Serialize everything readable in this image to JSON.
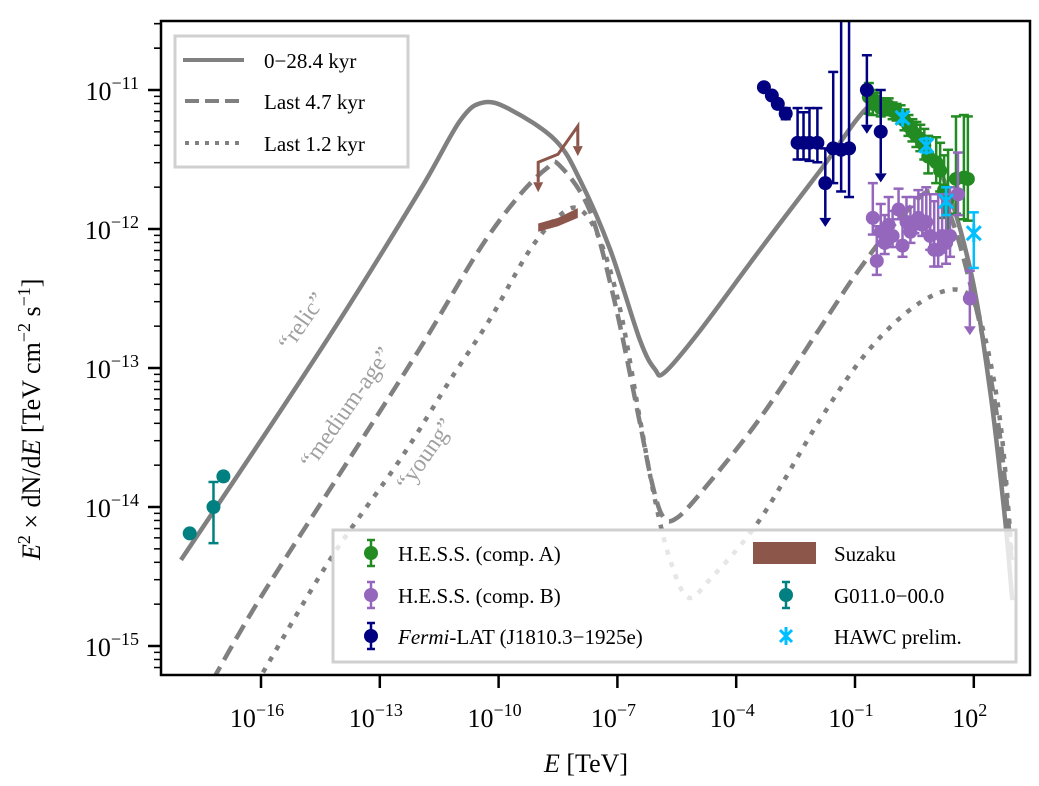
{
  "chart_data": {
    "type": "line",
    "title": "",
    "xlabel": "E [TeV]",
    "xlabel_var": "E",
    "xlabel_unit": "[TeV]",
    "ylabel": "E^2 × dN/dE [TeV cm^-2 s^-1]",
    "xscale": "log",
    "yscale": "log",
    "xlim_log10": [
      -18.5,
      3.6
    ],
    "ylim_log10": [
      -15.2,
      -10.5
    ],
    "x_ticks": [
      {
        "exp": "-16",
        "log10": -16
      },
      {
        "exp": "-13",
        "log10": -13
      },
      {
        "exp": "-10",
        "log10": -10
      },
      {
        "exp": "-7",
        "log10": -7
      },
      {
        "exp": "-4",
        "log10": -4
      },
      {
        "exp": "-1",
        "log10": -1
      },
      {
        "exp": "2",
        "log10": 2
      }
    ],
    "y_ticks": [
      {
        "exp": "-11",
        "log10": -11
      },
      {
        "exp": "-12",
        "log10": -12
      },
      {
        "exp": "-13",
        "log10": -13
      },
      {
        "exp": "-14",
        "log10": -14
      },
      {
        "exp": "-15",
        "log10": -15
      }
    ],
    "grid": false,
    "model_series": [
      {
        "name": "0−28.4 kyr",
        "style": "solid",
        "color": "#808080",
        "points_log10": [
          [
            -18.02,
            -14.38
          ],
          [
            -16.0,
            -13.52
          ],
          [
            -14.0,
            -12.65
          ],
          [
            -11.98,
            -11.72
          ],
          [
            -10.97,
            -11.22
          ],
          [
            -10.39,
            -11.09
          ],
          [
            -9.71,
            -11.14
          ],
          [
            -8.57,
            -11.36
          ],
          [
            -7.94,
            -11.65
          ],
          [
            -7.18,
            -12.15
          ],
          [
            -6.43,
            -12.8
          ],
          [
            -6.05,
            -13.01
          ],
          [
            -5.8,
            -13.03
          ],
          [
            -4.91,
            -12.73
          ],
          [
            -3.4,
            -12.15
          ],
          [
            -1.88,
            -11.58
          ],
          [
            -0.62,
            -11.11
          ],
          [
            0.14,
            -11.14
          ],
          [
            1.15,
            -11.58
          ],
          [
            1.91,
            -12.29
          ],
          [
            2.41,
            -13.16
          ],
          [
            2.79,
            -14.09
          ],
          [
            2.97,
            -14.67
          ]
        ]
      },
      {
        "name": "Last 4.7 kyr",
        "style": "dashed",
        "color": "#808080",
        "points_log10": [
          [
            -17.23,
            -15.25
          ],
          [
            -16.05,
            -14.67
          ],
          [
            -14.03,
            -13.77
          ],
          [
            -12.01,
            -12.87
          ],
          [
            -10.49,
            -12.15
          ],
          [
            -9.48,
            -11.76
          ],
          [
            -8.77,
            -11.56
          ],
          [
            -8.47,
            -11.54
          ],
          [
            -7.71,
            -11.86
          ],
          [
            -7.08,
            -12.51
          ],
          [
            -6.45,
            -13.37
          ],
          [
            -6.14,
            -13.81
          ],
          [
            -5.87,
            -14.06
          ],
          [
            -5.56,
            -14.09
          ],
          [
            -4.93,
            -13.91
          ],
          [
            -3.42,
            -13.37
          ],
          [
            -1.9,
            -12.72
          ],
          [
            -0.89,
            -12.29
          ],
          [
            0.12,
            -11.93
          ],
          [
            1.13,
            -11.75
          ],
          [
            2.01,
            -12.51
          ],
          [
            2.64,
            -13.45
          ],
          [
            2.95,
            -14.38
          ]
        ]
      },
      {
        "name": "Last 1.2 kyr",
        "style": "dotted",
        "color": "#808080",
        "points_log10": [
          [
            -15.95,
            -15.19
          ],
          [
            -14.26,
            -14.38
          ],
          [
            -12.49,
            -13.66
          ],
          [
            -11.23,
            -13.09
          ],
          [
            -10.22,
            -12.65
          ],
          [
            -9.21,
            -12.15
          ],
          [
            -8.45,
            -11.9
          ],
          [
            -7.94,
            -11.86
          ],
          [
            -7.44,
            -12.08
          ],
          [
            -6.93,
            -12.58
          ],
          [
            -6.43,
            -13.37
          ],
          [
            -6.05,
            -13.95
          ],
          [
            -5.67,
            -14.38
          ],
          [
            -5.22,
            -14.65
          ],
          [
            -4.66,
            -14.52
          ],
          [
            -3.4,
            -14.09
          ],
          [
            -1.88,
            -13.37
          ],
          [
            -0.62,
            -12.86
          ],
          [
            0.64,
            -12.53
          ],
          [
            1.66,
            -12.44
          ],
          [
            2.16,
            -12.65
          ],
          [
            2.66,
            -13.37
          ],
          [
            2.97,
            -14.38
          ]
        ]
      }
    ],
    "data_series": [
      {
        "name": "H.E.S.S. (comp. A)",
        "color": "#228b22",
        "marker": "circle",
        "points_log10": [
          [
            -0.65,
            -11.05,
            0.12,
            0.1
          ],
          [
            -0.55,
            -11.1,
            0.08,
            0.1
          ],
          [
            -0.45,
            -11.08,
            0.06,
            0.06
          ],
          [
            -0.35,
            -11.13,
            0.06,
            0.06
          ],
          [
            -0.25,
            -11.12,
            0.06,
            0.06
          ],
          [
            -0.15,
            -11.12,
            0.06,
            0.06
          ],
          [
            -0.05,
            -11.15,
            0.06,
            0.06
          ],
          [
            0.05,
            -11.16,
            0.06,
            0.06
          ],
          [
            0.15,
            -11.18,
            0.06,
            0.07
          ],
          [
            0.25,
            -11.22,
            0.07,
            0.08
          ],
          [
            0.35,
            -11.26,
            0.07,
            0.08
          ],
          [
            0.45,
            -11.3,
            0.07,
            0.09
          ],
          [
            0.55,
            -11.33,
            0.08,
            0.1
          ],
          [
            0.65,
            -11.35,
            0.09,
            0.1
          ],
          [
            0.75,
            -11.4,
            0.1,
            0.12
          ],
          [
            0.85,
            -11.48,
            0.12,
            0.15
          ],
          [
            1.05,
            -11.52,
            0.15,
            0.18
          ],
          [
            1.15,
            -11.58,
            0.15,
            0.2
          ],
          [
            1.25,
            -11.72,
            0.2,
            0.25
          ],
          [
            1.35,
            -11.78,
            0.25,
            0.35
          ],
          [
            1.55,
            -11.64,
            0.25,
            0.45
          ],
          [
            1.75,
            -11.63,
            0.3,
            0.45
          ],
          [
            1.85,
            -11.64,
            0.3,
            0.45
          ]
        ]
      },
      {
        "name": "H.E.S.S. (comp. B)",
        "color": "#9467bd",
        "marker": "circle",
        "points_log10": [
          [
            -0.55,
            -11.92,
            0.12,
            0.25
          ],
          [
            -0.45,
            -12.23,
            0.1,
            0.25
          ],
          [
            -0.35,
            -12.02,
            0.08,
            0.2
          ],
          [
            -0.25,
            -12.1,
            0.08,
            0.2
          ],
          [
            -0.15,
            -11.97,
            0.08,
            0.2
          ],
          [
            -0.05,
            -12.05,
            0.08,
            0.18
          ],
          [
            0.1,
            -11.86,
            0.07,
            0.15
          ],
          [
            0.2,
            -12.12,
            0.08,
            0.2
          ],
          [
            0.3,
            -11.95,
            0.07,
            0.18
          ],
          [
            0.4,
            -12.02,
            0.08,
            0.18
          ],
          [
            0.5,
            -11.95,
            0.08,
            0.18
          ],
          [
            0.6,
            -11.92,
            0.08,
            0.2
          ],
          [
            0.7,
            -11.97,
            0.08,
            0.22
          ],
          [
            0.8,
            -11.95,
            0.08,
            0.25
          ],
          [
            0.9,
            -12.05,
            0.1,
            0.3
          ],
          [
            1.0,
            -12.15,
            0.12,
            0.35
          ],
          [
            1.1,
            -12.15,
            0.12,
            0.4
          ],
          [
            1.2,
            -12.05,
            0.12,
            0.3
          ],
          [
            1.3,
            -12.1,
            0.15,
            0.35
          ],
          [
            1.4,
            -12.05,
            0.15,
            0.35
          ],
          [
            1.6,
            -11.75,
            0.15,
            0.3
          ],
          [
            1.9,
            -12.5,
            0.0,
            0.2
          ]
        ]
      },
      {
        "name": "Fermi-LAT (J1810.3−1925e)",
        "name_italic": "Fermi",
        "name_rest": "-LAT (J1810.3−1925e)",
        "color": "#000080",
        "marker": "circle",
        "points_log10": [
          [
            -3.3,
            -10.98,
            0.02,
            0.02
          ],
          [
            -3.1,
            -11.04,
            0.02,
            0.02
          ],
          [
            -2.95,
            -11.1,
            0.03,
            0.03
          ],
          [
            -2.75,
            -11.17,
            0.04,
            0.04
          ],
          [
            -2.45,
            -11.38,
            0.12,
            0.25
          ],
          [
            -2.3,
            -11.38,
            0.12,
            0.22
          ],
          [
            -2.15,
            -11.38,
            0.13,
            0.25
          ],
          [
            -1.95,
            -11.38,
            0.14,
            0.25
          ],
          [
            -1.75,
            -11.67,
            0.0,
            0.25
          ],
          [
            -1.55,
            -11.42,
            0.25,
            0.55
          ],
          [
            -1.35,
            -11.43,
            0.3,
            0.95
          ],
          [
            -1.15,
            -11.42,
            0.35,
            1.1
          ],
          [
            -0.7,
            -11.0,
            0.0,
            0.25
          ],
          [
            -0.35,
            -11.3,
            0.0,
            0.3
          ]
        ]
      },
      {
        "name": "Suzaku",
        "color": "#8c564b",
        "marker": "band",
        "band_log10": [
          [
            -9.0,
            -12.02,
            -11.96
          ],
          [
            -8.5,
            -11.98,
            -11.92
          ],
          [
            -8.0,
            -11.92,
            -11.85
          ]
        ],
        "upper_limits_log10": [
          [
            -9.0,
            -11.52
          ],
          [
            -8.0,
            -11.26
          ]
        ]
      },
      {
        "name": "G011.0−00.0",
        "color": "#008080",
        "marker": "circle",
        "points_log10": [
          [
            -17.8,
            -14.19,
            0.0,
            0.0
          ],
          [
            -17.2,
            -14.0,
            0.26,
            0.18
          ],
          [
            -16.95,
            -13.78,
            0.03,
            0.03
          ]
        ]
      },
      {
        "name": "HAWC prelim.",
        "color": "#00bfff",
        "marker": "x-star",
        "points_log10": [
          [
            0.2,
            -11.2,
            0.03,
            0.03
          ],
          [
            0.8,
            -11.4,
            0.05,
            0.05
          ],
          [
            1.3,
            -11.8,
            0.1,
            0.1
          ],
          [
            2.0,
            -12.03,
            0.25,
            0.15
          ]
        ]
      }
    ],
    "annotations": [
      {
        "text": "“relic”",
        "color": "#a0a0a0"
      },
      {
        "text": "“medium-age”",
        "color": "#a0a0a0"
      },
      {
        "text": "“young”",
        "color": "#a0a0a0"
      }
    ],
    "legends": [
      {
        "placement": "top-left",
        "entries": [
          "0−28.4 kyr",
          "Last 4.7 kyr",
          "Last 1.2 kyr"
        ]
      },
      {
        "placement": "lower-right",
        "columns": 2,
        "entries": [
          "H.E.S.S. (comp. A)",
          "H.E.S.S. (comp. B)",
          "Fermi-LAT (J1810.3−1925e)",
          "Suzaku",
          "G011.0−00.0",
          "HAWC prelim."
        ]
      }
    ]
  },
  "labels": {
    "y_axis_E": "E",
    "y_axis_sup2": "2",
    "y_axis_rest": " × dN/d",
    "y_axis_E2": "E",
    "y_axis_units": " [TeV cm",
    "y_axis_sup_m2": "−2",
    "y_axis_s": " s",
    "y_axis_sup_m1": "−1",
    "y_axis_close": "]",
    "x_axis_E": "E",
    "x_axis_unit": " [TeV]",
    "tick_base": "10"
  }
}
